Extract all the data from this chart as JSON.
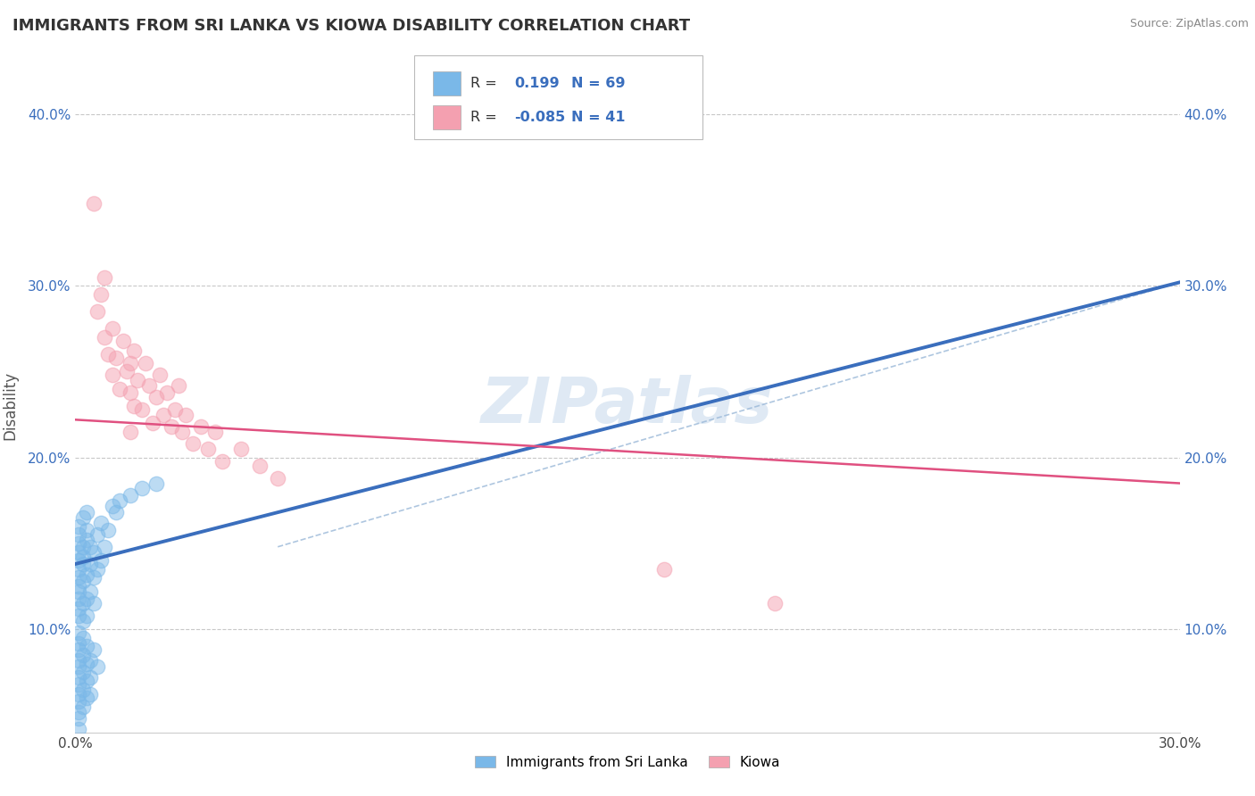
{
  "title": "IMMIGRANTS FROM SRI LANKA VS KIOWA DISABILITY CORRELATION CHART",
  "source": "Source: ZipAtlas.com",
  "xlabel_blue": "Immigrants from Sri Lanka",
  "xlabel_pink": "Kiowa",
  "ylabel": "Disability",
  "xlim": [
    0.0,
    0.3
  ],
  "ylim": [
    0.04,
    0.42
  ],
  "ytick_positions": [
    0.1,
    0.2,
    0.3,
    0.4
  ],
  "ytick_labels": [
    "10.0%",
    "20.0%",
    "30.0%",
    "40.0%"
  ],
  "r_blue": "0.199",
  "n_blue": "69",
  "r_pink": "-0.085",
  "n_pink": "41",
  "blue_color": "#7ab8e8",
  "pink_color": "#f4a0b0",
  "blue_line_color": "#3a6ebd",
  "pink_line_color": "#e05080",
  "grid_color": "#c8c8c8",
  "watermark_color": "#b8d0e8",
  "blue_scatter": [
    [
      0.001,
      0.13
    ],
    [
      0.001,
      0.118
    ],
    [
      0.001,
      0.108
    ],
    [
      0.001,
      0.145
    ],
    [
      0.001,
      0.16
    ],
    [
      0.001,
      0.098
    ],
    [
      0.001,
      0.125
    ],
    [
      0.001,
      0.14
    ],
    [
      0.001,
      0.112
    ],
    [
      0.001,
      0.155
    ],
    [
      0.001,
      0.135
    ],
    [
      0.001,
      0.15
    ],
    [
      0.001,
      0.122
    ],
    [
      0.001,
      0.092
    ],
    [
      0.001,
      0.088
    ],
    [
      0.001,
      0.078
    ],
    [
      0.001,
      0.068
    ],
    [
      0.001,
      0.058
    ],
    [
      0.001,
      0.048
    ],
    [
      0.001,
      0.072
    ],
    [
      0.001,
      0.062
    ],
    [
      0.001,
      0.052
    ],
    [
      0.001,
      0.082
    ],
    [
      0.001,
      0.042
    ],
    [
      0.002,
      0.128
    ],
    [
      0.002,
      0.115
    ],
    [
      0.002,
      0.138
    ],
    [
      0.002,
      0.105
    ],
    [
      0.002,
      0.148
    ],
    [
      0.002,
      0.095
    ],
    [
      0.002,
      0.085
    ],
    [
      0.002,
      0.075
    ],
    [
      0.002,
      0.065
    ],
    [
      0.002,
      0.055
    ],
    [
      0.002,
      0.165
    ],
    [
      0.002,
      0.142
    ],
    [
      0.003,
      0.132
    ],
    [
      0.003,
      0.118
    ],
    [
      0.003,
      0.152
    ],
    [
      0.003,
      0.108
    ],
    [
      0.003,
      0.09
    ],
    [
      0.003,
      0.08
    ],
    [
      0.003,
      0.07
    ],
    [
      0.003,
      0.06
    ],
    [
      0.003,
      0.158
    ],
    [
      0.003,
      0.168
    ],
    [
      0.004,
      0.122
    ],
    [
      0.004,
      0.138
    ],
    [
      0.004,
      0.148
    ],
    [
      0.004,
      0.072
    ],
    [
      0.004,
      0.082
    ],
    [
      0.004,
      0.062
    ],
    [
      0.005,
      0.13
    ],
    [
      0.005,
      0.145
    ],
    [
      0.005,
      0.115
    ],
    [
      0.005,
      0.088
    ],
    [
      0.006,
      0.135
    ],
    [
      0.006,
      0.155
    ],
    [
      0.006,
      0.078
    ],
    [
      0.007,
      0.14
    ],
    [
      0.007,
      0.162
    ],
    [
      0.008,
      0.148
    ],
    [
      0.009,
      0.158
    ],
    [
      0.01,
      0.172
    ],
    [
      0.011,
      0.168
    ],
    [
      0.012,
      0.175
    ],
    [
      0.015,
      0.178
    ],
    [
      0.018,
      0.182
    ],
    [
      0.022,
      0.185
    ]
  ],
  "pink_scatter": [
    [
      0.005,
      0.348
    ],
    [
      0.006,
      0.285
    ],
    [
      0.007,
      0.295
    ],
    [
      0.008,
      0.305
    ],
    [
      0.008,
      0.27
    ],
    [
      0.009,
      0.26
    ],
    [
      0.01,
      0.248
    ],
    [
      0.01,
      0.275
    ],
    [
      0.011,
      0.258
    ],
    [
      0.012,
      0.24
    ],
    [
      0.013,
      0.268
    ],
    [
      0.014,
      0.25
    ],
    [
      0.015,
      0.255
    ],
    [
      0.015,
      0.238
    ],
    [
      0.016,
      0.262
    ],
    [
      0.016,
      0.23
    ],
    [
      0.017,
      0.245
    ],
    [
      0.018,
      0.228
    ],
    [
      0.019,
      0.255
    ],
    [
      0.02,
      0.242
    ],
    [
      0.021,
      0.22
    ],
    [
      0.022,
      0.235
    ],
    [
      0.023,
      0.248
    ],
    [
      0.024,
      0.225
    ],
    [
      0.025,
      0.238
    ],
    [
      0.026,
      0.218
    ],
    [
      0.027,
      0.228
    ],
    [
      0.028,
      0.242
    ],
    [
      0.029,
      0.215
    ],
    [
      0.03,
      0.225
    ],
    [
      0.032,
      0.208
    ],
    [
      0.034,
      0.218
    ],
    [
      0.036,
      0.205
    ],
    [
      0.038,
      0.215
    ],
    [
      0.04,
      0.198
    ],
    [
      0.045,
      0.205
    ],
    [
      0.05,
      0.195
    ],
    [
      0.055,
      0.188
    ],
    [
      0.16,
      0.135
    ],
    [
      0.19,
      0.115
    ],
    [
      0.015,
      0.215
    ]
  ],
  "blue_trendline": [
    [
      0.0,
      0.138
    ],
    [
      0.3,
      0.302
    ]
  ],
  "pink_trendline": [
    [
      0.0,
      0.222
    ],
    [
      0.3,
      0.185
    ]
  ],
  "dashed_line": [
    [
      0.055,
      0.148
    ],
    [
      0.3,
      0.302
    ]
  ]
}
